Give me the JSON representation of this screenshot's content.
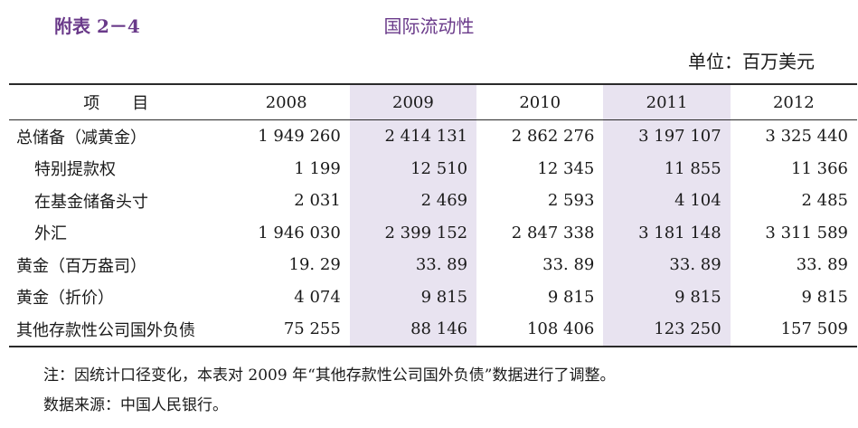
{
  "header": {
    "appendix_label": "附表 2－4",
    "title": "国际流动性",
    "unit": "单位：百万美元"
  },
  "table": {
    "columns": [
      "项　　目",
      "2008",
      "2009",
      "2010",
      "2011",
      "2012"
    ],
    "rows": [
      {
        "label": "总储备（减黄金）",
        "values": [
          "1 949 260",
          "2 414 131",
          "2 862 276",
          "3 197 107",
          "3 325 440"
        ]
      },
      {
        "label": "特别提款权",
        "values": [
          "1 199",
          "12 510",
          "12 345",
          "11 855",
          "11 366"
        ]
      },
      {
        "label": "在基金储备头寸",
        "values": [
          "2 031",
          "2 469",
          "2 593",
          "4 104",
          "2 485"
        ]
      },
      {
        "label": "外汇",
        "values": [
          "1 946 030",
          "2 399 152",
          "2 847 338",
          "3 181 148",
          "3 311 589"
        ]
      },
      {
        "label": "黄金（百万盎司）",
        "values": [
          "19. 29",
          "33. 89",
          "33. 89",
          "33. 89",
          "33. 89"
        ]
      },
      {
        "label": "黄金（折价）",
        "values": [
          "4 074",
          "9 815",
          "9 815",
          "9 815",
          "9 815"
        ]
      },
      {
        "label": "其他存款性公司国外负债",
        "values": [
          "75 255",
          "88 146",
          "108 406",
          "123 250",
          "157 509"
        ]
      }
    ]
  },
  "notes": {
    "note": "注：因统计口径变化，本表对 2009 年“其他存款性公司国外负债”数据进行了调整。",
    "source": "数据来源：中国人民银行。"
  },
  "colors": {
    "title": "#6a3a8a",
    "shade": "#e8e3f0"
  }
}
